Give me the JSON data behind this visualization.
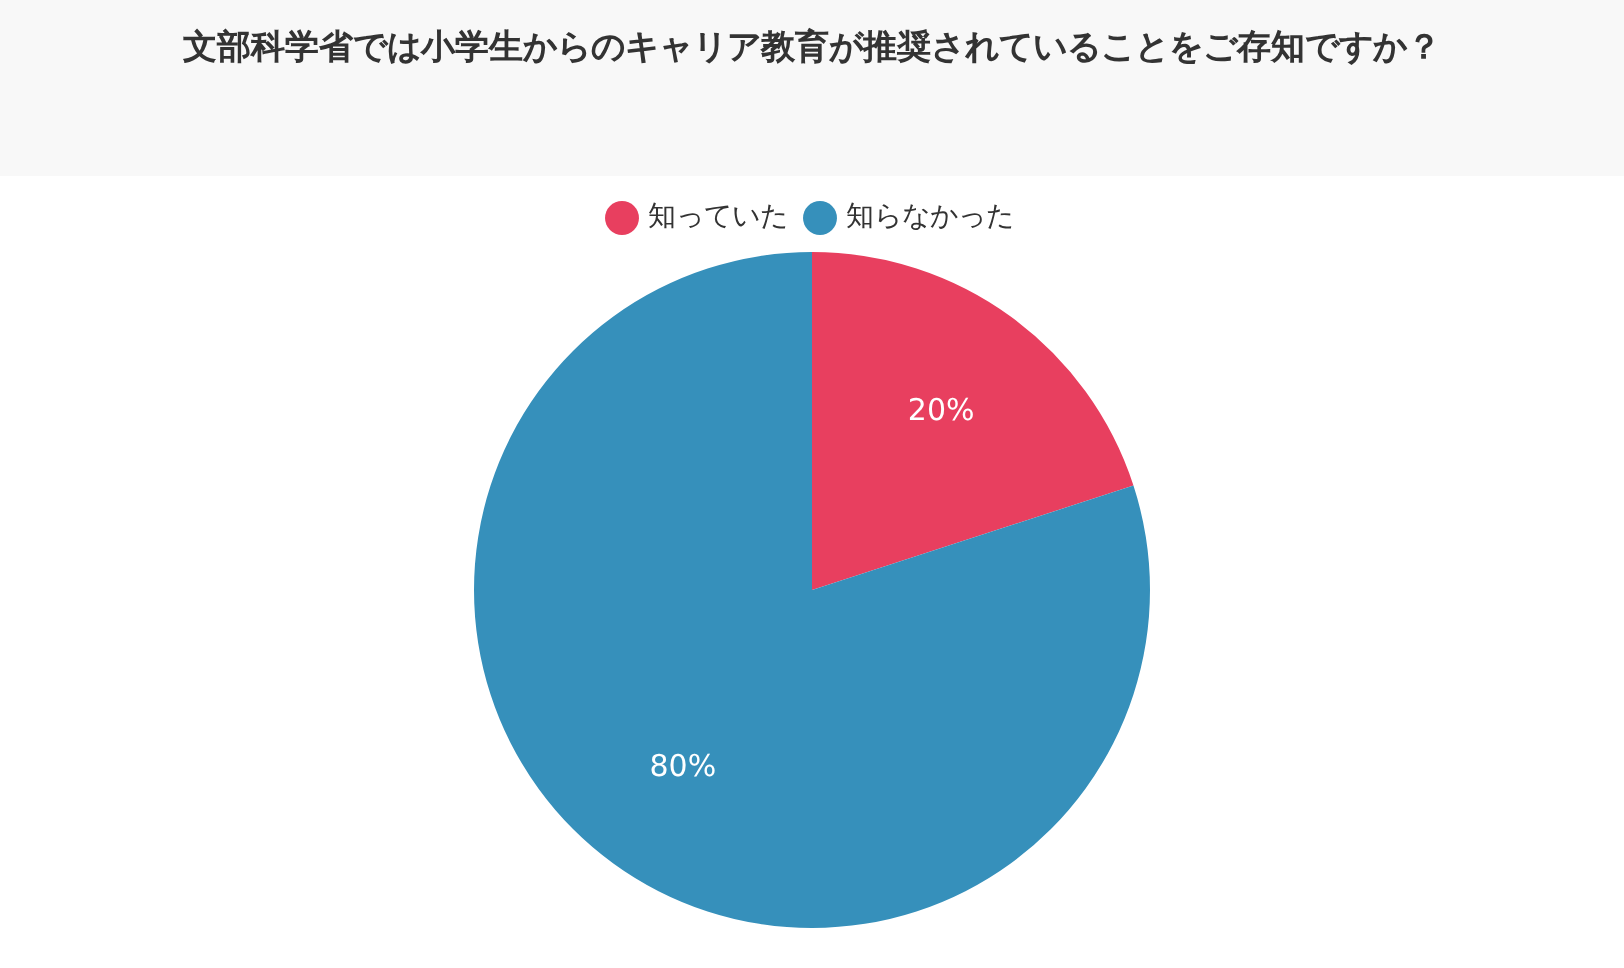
{
  "chart_data": {
    "type": "pie",
    "title": "文部科学省では小学生からのキャリア教育が推奨されていることをご存知ですか？",
    "categories": [
      "知っていた",
      "知らなかった"
    ],
    "values": [
      20,
      80
    ],
    "colors": [
      "#e83f5f",
      "#3690bb"
    ],
    "value_labels": [
      "20%",
      "80%"
    ],
    "legend": "top"
  }
}
